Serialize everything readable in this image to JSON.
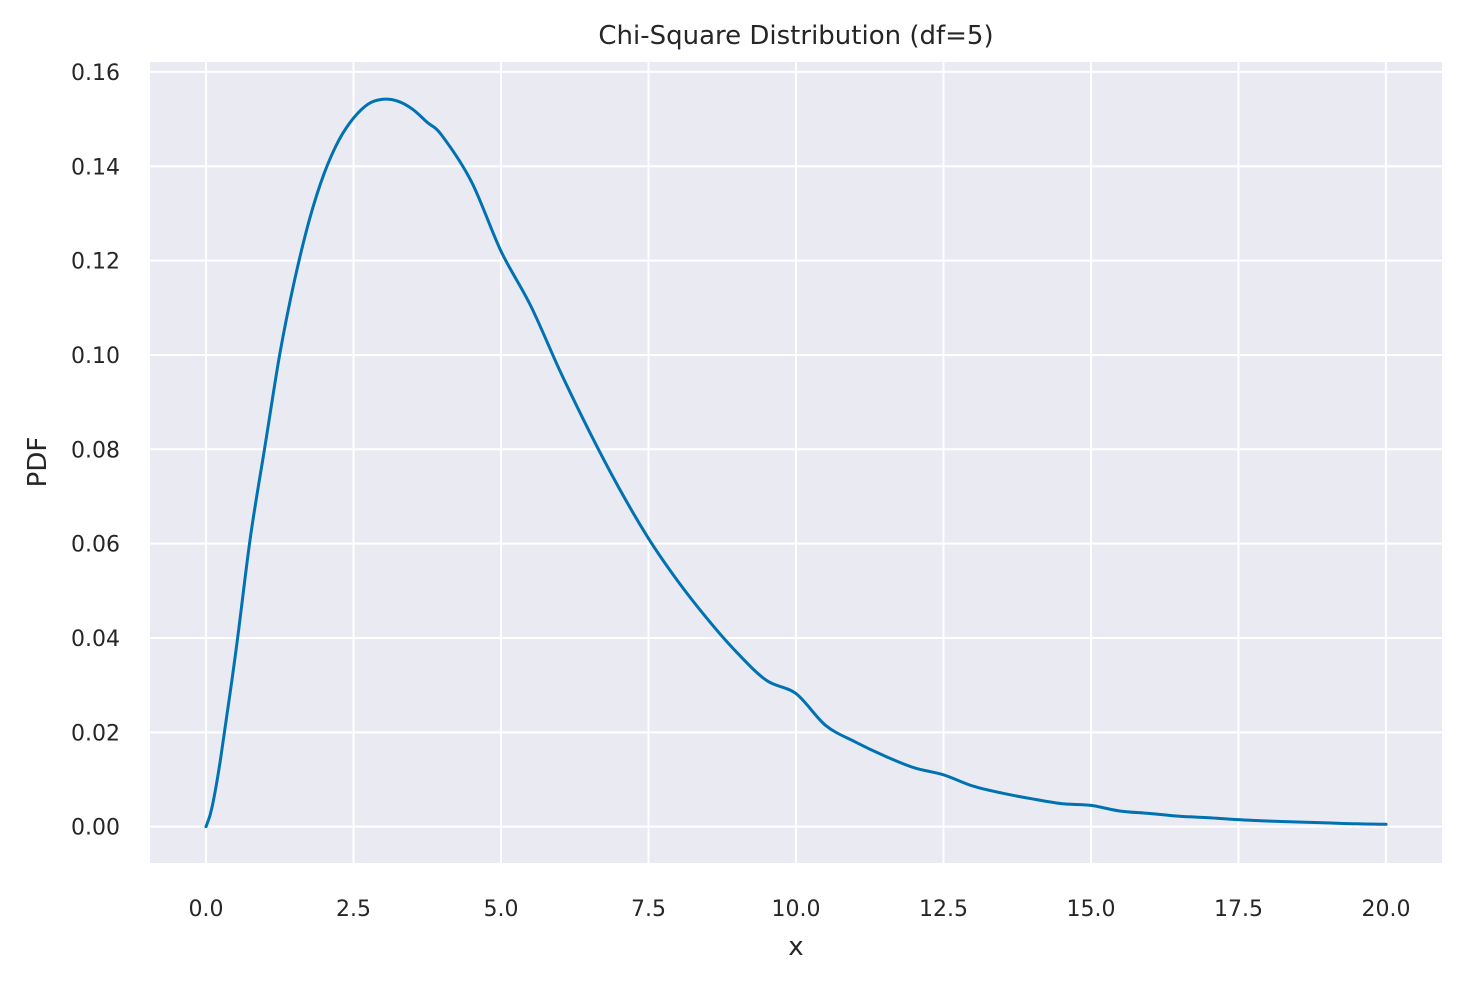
{
  "chart_data": {
    "type": "line",
    "title": "Chi-Square Distribution (df=5)",
    "xlabel": "x",
    "ylabel": "PDF",
    "xlim": [
      -0.95,
      20.95
    ],
    "ylim": [
      -0.0077,
      0.1621
    ],
    "xticks": [
      0,
      2.5,
      5,
      7.5,
      10,
      12.5,
      15,
      17.5,
      20
    ],
    "xtick_labels": [
      "0.0",
      "2.5",
      "5.0",
      "7.5",
      "10.0",
      "12.5",
      "15.0",
      "17.5",
      "20.0"
    ],
    "yticks": [
      0,
      0.02,
      0.04,
      0.06,
      0.08,
      0.1,
      0.12,
      0.14,
      0.16
    ],
    "ytick_labels": [
      "0.00",
      "0.02",
      "0.04",
      "0.06",
      "0.08",
      "0.10",
      "0.12",
      "0.14",
      "0.16"
    ],
    "grid": true,
    "background_color": "#eaeaf2",
    "series": [
      {
        "color": "#0072b2",
        "x": [
          0,
          0.1,
          0.25,
          0.5,
          0.75,
          1.0,
          1.25,
          1.5,
          1.75,
          2.0,
          2.25,
          2.5,
          2.75,
          3.0,
          3.25,
          3.5,
          3.75,
          4.0,
          4.5,
          5.0,
          5.5,
          6.0,
          6.5,
          7.0,
          7.5,
          8.0,
          8.5,
          9.0,
          9.5,
          10.0,
          10.5,
          11.0,
          11.5,
          12.0,
          12.5,
          13.0,
          13.5,
          14.0,
          14.5,
          15.0,
          15.5,
          16.0,
          16.5,
          17.0,
          17.5,
          18.0,
          18.5,
          19.0,
          19.5,
          20.0
        ],
        "y": [
          0,
          0.004,
          0.0147,
          0.0366,
          0.0612,
          0.0807,
          0.1002,
          0.1158,
          0.1286,
          0.1384,
          0.1455,
          0.1502,
          0.1532,
          0.1542,
          0.1538,
          0.1521,
          0.1493,
          0.1465,
          0.1367,
          0.122,
          0.1105,
          0.0966,
          0.0837,
          0.0718,
          0.0611,
          0.052,
          0.044,
          0.0369,
          0.031,
          0.0282,
          0.0215,
          0.018,
          0.015,
          0.0125,
          0.011,
          0.0086,
          0.0071,
          0.0059,
          0.0049,
          0.0045,
          0.0033,
          0.0028,
          0.0022,
          0.0019,
          0.0015,
          0.0012,
          0.001,
          0.0008,
          0.0006,
          0.0005
        ]
      }
    ]
  }
}
